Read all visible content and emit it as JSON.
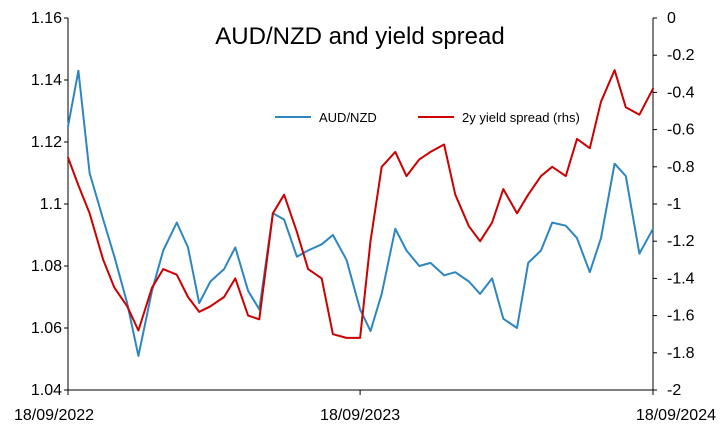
{
  "chart_data": {
    "type": "line",
    "title": "AUD/NZD and yield spread",
    "xlabel": "",
    "ylabel": "",
    "x_tick_labels": [
      "18/09/2022",
      "18/09/2023",
      "18/09/2024"
    ],
    "x_range": [
      "18/09/2022",
      "18/09/2024"
    ],
    "y_left": {
      "ylim": [
        1.04,
        1.16
      ],
      "ticks": [
        "1.04",
        "1.06",
        "1.08",
        "1.1",
        "1.12",
        "1.14",
        "1.16"
      ]
    },
    "y_right": {
      "ylim": [
        -2,
        0
      ],
      "ticks": [
        "-2",
        "-1.8",
        "-1.6",
        "-1.4",
        "-1.2",
        "-1",
        "-0.8",
        "-0.6",
        "-0.4",
        "-0.2",
        "0"
      ]
    },
    "grid": false,
    "legend_position": "top-center",
    "series": [
      {
        "name": "AUD/NZD",
        "axis": "left",
        "color": "#2E86C1",
        "x": [
          "2022-09-18",
          "2022-10-01",
          "2022-10-15",
          "2022-11-01",
          "2022-11-15",
          "2022-12-01",
          "2022-12-15",
          "2023-01-01",
          "2023-01-15",
          "2023-02-01",
          "2023-02-15",
          "2023-03-01",
          "2023-03-15",
          "2023-04-01",
          "2023-04-15",
          "2023-05-01",
          "2023-05-15",
          "2023-06-01",
          "2023-06-15",
          "2023-07-01",
          "2023-07-15",
          "2023-08-01",
          "2023-08-15",
          "2023-09-01",
          "2023-09-18",
          "2023-10-01",
          "2023-10-15",
          "2023-11-01",
          "2023-11-15",
          "2023-12-01",
          "2023-12-15",
          "2024-01-01",
          "2024-01-15",
          "2024-02-01",
          "2024-02-15",
          "2024-03-01",
          "2024-03-15",
          "2024-04-01",
          "2024-04-15",
          "2024-05-01",
          "2024-05-15",
          "2024-06-01",
          "2024-06-15",
          "2024-07-01",
          "2024-07-15",
          "2024-08-01",
          "2024-08-15",
          "2024-09-01",
          "2024-09-18"
        ],
        "values": [
          1.125,
          1.143,
          1.11,
          1.095,
          1.083,
          1.068,
          1.051,
          1.072,
          1.085,
          1.094,
          1.086,
          1.068,
          1.075,
          1.079,
          1.086,
          1.072,
          1.066,
          1.097,
          1.095,
          1.083,
          1.085,
          1.087,
          1.09,
          1.082,
          1.066,
          1.059,
          1.071,
          1.092,
          1.085,
          1.08,
          1.081,
          1.077,
          1.078,
          1.075,
          1.071,
          1.076,
          1.063,
          1.06,
          1.081,
          1.085,
          1.094,
          1.093,
          1.089,
          1.078,
          1.089,
          1.113,
          1.109,
          1.084,
          1.092
        ]
      },
      {
        "name": "2y yield spread (rhs)",
        "axis": "right",
        "color": "#CC0000",
        "x": [
          "2022-09-18",
          "2022-10-01",
          "2022-10-15",
          "2022-11-01",
          "2022-11-15",
          "2022-12-01",
          "2022-12-15",
          "2023-01-01",
          "2023-01-15",
          "2023-02-01",
          "2023-02-15",
          "2023-03-01",
          "2023-03-15",
          "2023-04-01",
          "2023-04-15",
          "2023-05-01",
          "2023-05-15",
          "2023-06-01",
          "2023-06-15",
          "2023-07-01",
          "2023-07-15",
          "2023-08-01",
          "2023-08-15",
          "2023-09-01",
          "2023-09-18",
          "2023-10-01",
          "2023-10-15",
          "2023-11-01",
          "2023-11-15",
          "2023-12-01",
          "2023-12-15",
          "2024-01-01",
          "2024-01-15",
          "2024-02-01",
          "2024-02-15",
          "2024-03-01",
          "2024-03-15",
          "2024-04-01",
          "2024-04-15",
          "2024-05-01",
          "2024-05-15",
          "2024-06-01",
          "2024-06-15",
          "2024-07-01",
          "2024-07-15",
          "2024-08-01",
          "2024-08-15",
          "2024-09-01",
          "2024-09-18"
        ],
        "values": [
          -0.75,
          -0.9,
          -1.05,
          -1.3,
          -1.45,
          -1.55,
          -1.68,
          -1.45,
          -1.35,
          -1.38,
          -1.5,
          -1.58,
          -1.55,
          -1.5,
          -1.4,
          -1.6,
          -1.62,
          -1.05,
          -0.95,
          -1.15,
          -1.35,
          -1.4,
          -1.7,
          -1.72,
          -1.72,
          -1.2,
          -0.8,
          -0.72,
          -0.85,
          -0.76,
          -0.72,
          -0.68,
          -0.95,
          -1.12,
          -1.2,
          -1.1,
          -0.92,
          -1.05,
          -0.95,
          -0.85,
          -0.8,
          -0.85,
          -0.65,
          -0.7,
          -0.45,
          -0.28,
          -0.48,
          -0.52,
          -0.38
        ]
      }
    ]
  }
}
